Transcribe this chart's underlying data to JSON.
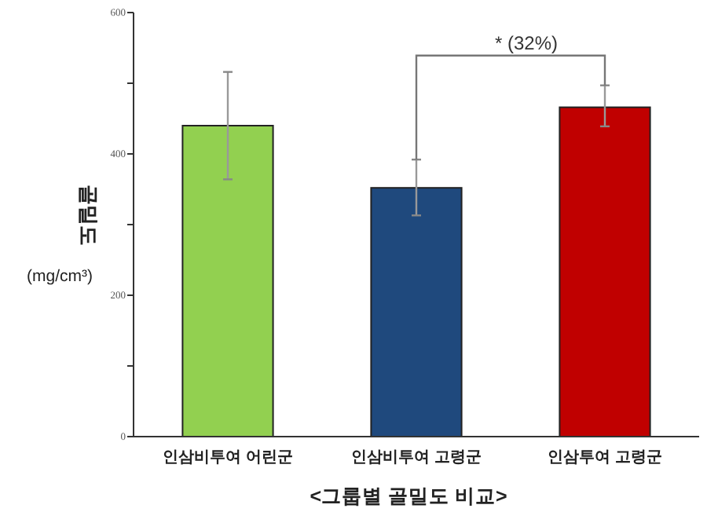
{
  "chart_data": {
    "type": "bar",
    "xlabel": "<그룹별 골밀도 비교>",
    "ylabel": "골밀도\n(mg/cm³)",
    "categories": [
      "인삼비투여 어린군",
      "인삼비투여 고령군",
      "인삼투여 고령군"
    ],
    "values": [
      440,
      352,
      466
    ],
    "colors": [
      "#92d050",
      "#1f497d",
      "#c00000"
    ],
    "errors": [
      [
        364,
        516
      ],
      [
        313,
        392
      ],
      [
        439,
        497
      ]
    ],
    "ylim": [
      0,
      600
    ],
    "yticks": [
      0,
      {
        "value": 100,
        "label": null
      },
      200,
      {
        "value": 300,
        "label": null
      },
      400,
      {
        "value": 500,
        "label": null
      },
      600
    ],
    "grid": false,
    "annotations": [
      "* (32%)"
    ]
  }
}
